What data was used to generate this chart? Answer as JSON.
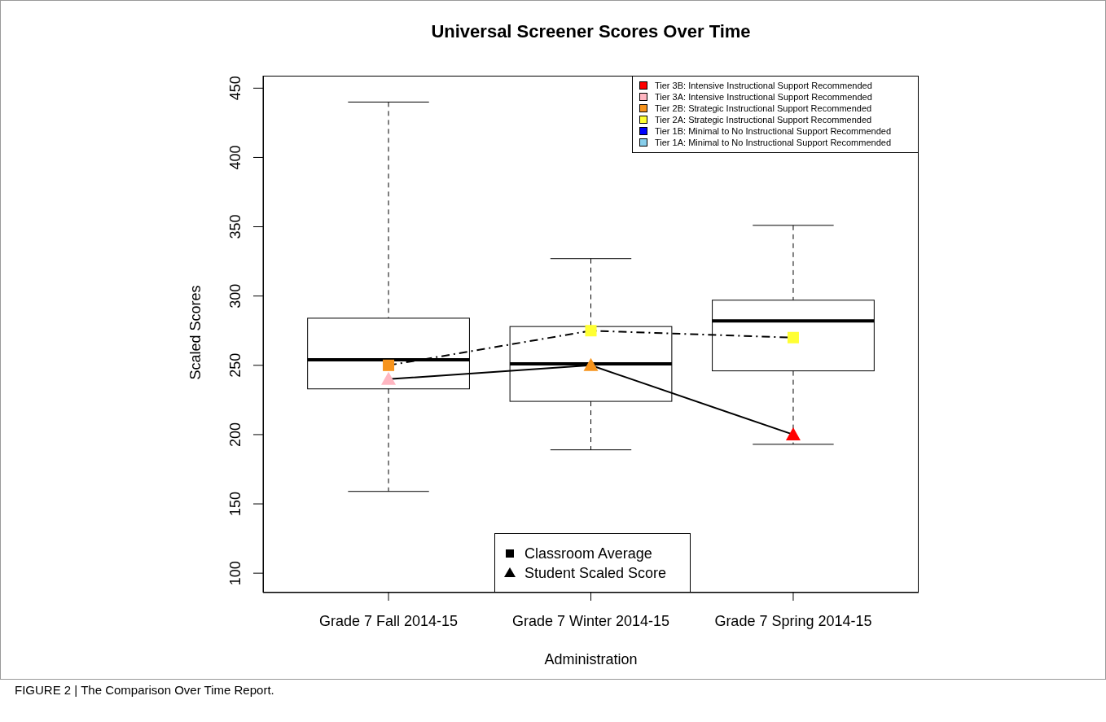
{
  "chart_data": {
    "type": "box",
    "title": "Universal Screener Scores Over Time",
    "xlabel": "Administration",
    "ylabel": "Scaled Scores",
    "categories": [
      "Grade 7 Fall 2014-15",
      "Grade 7 Winter 2014-15",
      "Grade 7 Spring 2014-15"
    ],
    "boxes": [
      {
        "low": 159,
        "q1": 233,
        "median": 254,
        "q3": 284,
        "high": 440
      },
      {
        "low": 189,
        "q1": 224,
        "median": 251,
        "q3": 278,
        "high": 327
      },
      {
        "low": 193,
        "q1": 246,
        "median": 282,
        "q3": 297,
        "high": 351
      }
    ],
    "series": [
      {
        "name": "Classroom Average",
        "type": "line",
        "marker": "square",
        "line_style": "dashed",
        "color": "#000000",
        "values": [
          250,
          275,
          270
        ],
        "colors": [
          "#f7941d",
          "#ffff33",
          "#ffff33"
        ]
      },
      {
        "name": "Student Scaled Score",
        "type": "line",
        "marker": "triangle",
        "line_style": "solid",
        "color": "#000000",
        "values": [
          240,
          250,
          200
        ],
        "colors": [
          "#ffb6c1",
          "#f7941d",
          "#ff0000"
        ]
      },
      {
        "name": "Tier 3B: Intensive Instructional Support Recommended",
        "type": "scatter",
        "color": "#ff0000",
        "values": [
          null,
          null,
          null
        ]
      },
      {
        "name": "Tier 3A: Intensive Instructional Support Recommended",
        "type": "scatter",
        "color": "#ffb6c1",
        "values": [
          null,
          null,
          null
        ]
      },
      {
        "name": "Tier 2B: Strategic Instructional Support Recommended",
        "type": "scatter",
        "color": "#f7941d",
        "values": [
          null,
          null,
          null
        ]
      },
      {
        "name": "Tier 2A: Strategic Instructional Support Recommended",
        "type": "scatter",
        "color": "#ffff33",
        "values": [
          null,
          null,
          null
        ]
      },
      {
        "name": "Tier 1B: Minimal to No Instructional Support Recommended",
        "type": "scatter",
        "color": "#0000ff",
        "values": [
          null,
          null,
          null
        ]
      },
      {
        "name": "Tier 1A: Minimal to No Instructional Support Recommended",
        "type": "scatter",
        "color": "#87ceeb",
        "values": [
          null,
          null,
          null
        ]
      }
    ],
    "ylim": [
      86,
      459
    ],
    "yticks": [
      100,
      150,
      200,
      250,
      300,
      350,
      400,
      450
    ],
    "legend": "top right",
    "annotations": [
      "FIGURE 2 | The Comparison Over Time Report."
    ]
  }
}
